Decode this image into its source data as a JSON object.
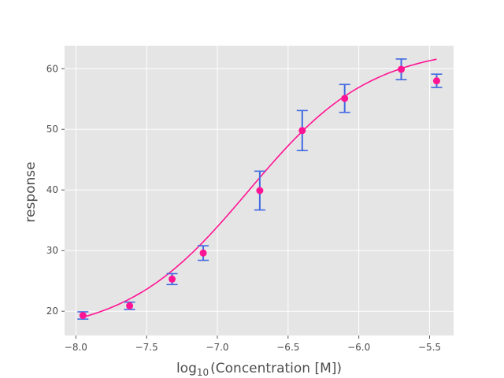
{
  "chart_data": {
    "type": "scatter",
    "title": "",
    "xlabel": "log",
    "xlabel_sub": "10",
    "xlabel_rest": "(Concentration [M])",
    "ylabel": "response",
    "xlim": [
      -8.08,
      -5.33
    ],
    "ylim": [
      16.0,
      63.8
    ],
    "grid": true,
    "x_ticks": [
      -8.0,
      -7.5,
      -7.0,
      -6.5,
      -6.0,
      -5.5
    ],
    "x_tick_labels": [
      "−8.0",
      "−7.5",
      "−7.0",
      "−6.5",
      "−6.0",
      "−5.5"
    ],
    "y_ticks": [
      20,
      30,
      40,
      50,
      60
    ],
    "y_tick_labels": [
      "20",
      "30",
      "40",
      "50",
      "60"
    ],
    "series": [
      {
        "kind": "points_with_errorbars",
        "x": [
          -7.95,
          -7.62,
          -7.32,
          -7.1,
          -6.7,
          -6.4,
          -6.1,
          -5.7,
          -5.45
        ],
        "y": [
          19.3,
          20.9,
          25.3,
          29.6,
          39.9,
          49.8,
          55.1,
          59.9,
          58.0
        ],
        "yerr": [
          0.6,
          0.6,
          0.9,
          1.2,
          3.2,
          3.3,
          2.3,
          1.7,
          1.1
        ]
      },
      {
        "kind": "fit_curve",
        "x_range": [
          -7.95,
          -5.45
        ],
        "model": "4PL",
        "bottom": 16.0,
        "top": 63.7,
        "log_ec50": -6.78,
        "hill_slope": 1.0
      }
    ],
    "colors": {
      "points": "#ff1493",
      "errorbars": "#4169e1",
      "fit": "#ff1493",
      "plot_background": "#e5e5e5",
      "grid": "#ffffff",
      "text": "#4d4d4d"
    }
  }
}
